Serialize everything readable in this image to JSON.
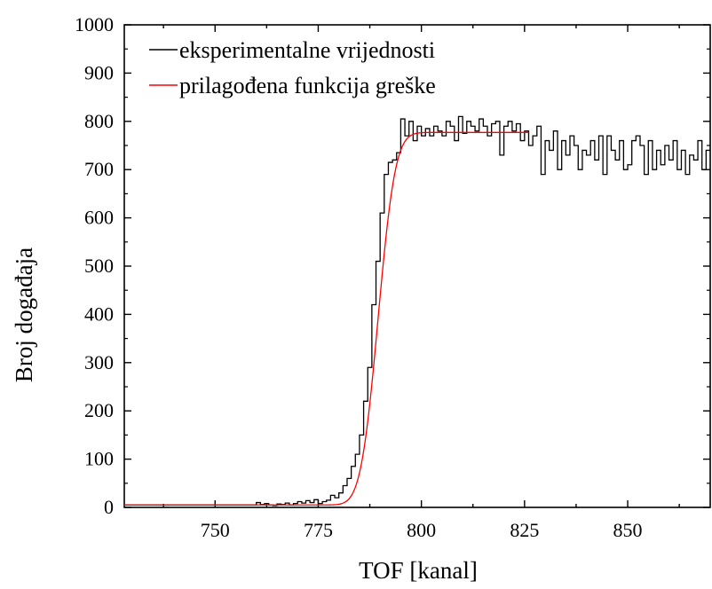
{
  "chart_data": {
    "type": "line",
    "title": "",
    "xlabel": "TOF [kanal]",
    "ylabel": "Broj događaja",
    "xlim": [
      728,
      870
    ],
    "ylim": [
      0,
      1000
    ],
    "xticks": [
      750,
      775,
      800,
      825,
      850
    ],
    "yticks": [
      0,
      100,
      200,
      300,
      400,
      500,
      600,
      700,
      800,
      900,
      1000
    ],
    "legend_position": "top-left",
    "series": [
      {
        "name": "eksperimentalne vrijednosti",
        "style": "step",
        "color": "#000000",
        "x": [
          728,
          760,
          761,
          762,
          763,
          764,
          765,
          766,
          767,
          768,
          769,
          770,
          771,
          772,
          773,
          774,
          775,
          776,
          777,
          778,
          779,
          780,
          781,
          782,
          783,
          784,
          785,
          786,
          787,
          788,
          789,
          790,
          791,
          792,
          793,
          794,
          795,
          796,
          797,
          798,
          799,
          800,
          801,
          802,
          803,
          804,
          805,
          806,
          807,
          808,
          809,
          810,
          811,
          812,
          813,
          814,
          815,
          816,
          817,
          818,
          819,
          820,
          821,
          822,
          823,
          824,
          825,
          826,
          827,
          828,
          829,
          830,
          831,
          832,
          833,
          834,
          835,
          836,
          837,
          838,
          839,
          840,
          841,
          842,
          843,
          844,
          845,
          846,
          847,
          848,
          849,
          850,
          851,
          852,
          853,
          854,
          855,
          856,
          857,
          858,
          859,
          860,
          861,
          862,
          863,
          864,
          865,
          866,
          867,
          868,
          869
        ],
        "values": [
          5,
          10,
          6,
          8,
          5,
          4,
          7,
          6,
          9,
          5,
          8,
          12,
          9,
          14,
          10,
          16,
          8,
          12,
          15,
          25,
          20,
          30,
          45,
          60,
          85,
          110,
          150,
          220,
          290,
          420,
          510,
          610,
          690,
          715,
          720,
          735,
          805,
          770,
          800,
          760,
          790,
          770,
          785,
          770,
          790,
          780,
          770,
          800,
          790,
          760,
          810,
          775,
          800,
          790,
          780,
          805,
          790,
          770,
          795,
          800,
          730,
          790,
          800,
          780,
          795,
          760,
          780,
          750,
          770,
          790,
          690,
          760,
          740,
          780,
          700,
          760,
          730,
          770,
          750,
          700,
          740,
          730,
          760,
          720,
          770,
          690,
          770,
          740,
          720,
          760,
          700,
          710,
          760,
          770,
          750,
          690,
          760,
          700,
          740,
          710,
          750,
          720,
          760,
          700,
          740,
          690,
          730,
          720,
          760,
          700,
          740
        ]
      },
      {
        "name": "prilagođena funkcija greške",
        "style": "erf",
        "color": "#ff0000",
        "x_range": [
          728,
          826
        ],
        "baseline": 5,
        "plateau": 777,
        "center": 789.5,
        "sigma": 3.3
      }
    ]
  }
}
